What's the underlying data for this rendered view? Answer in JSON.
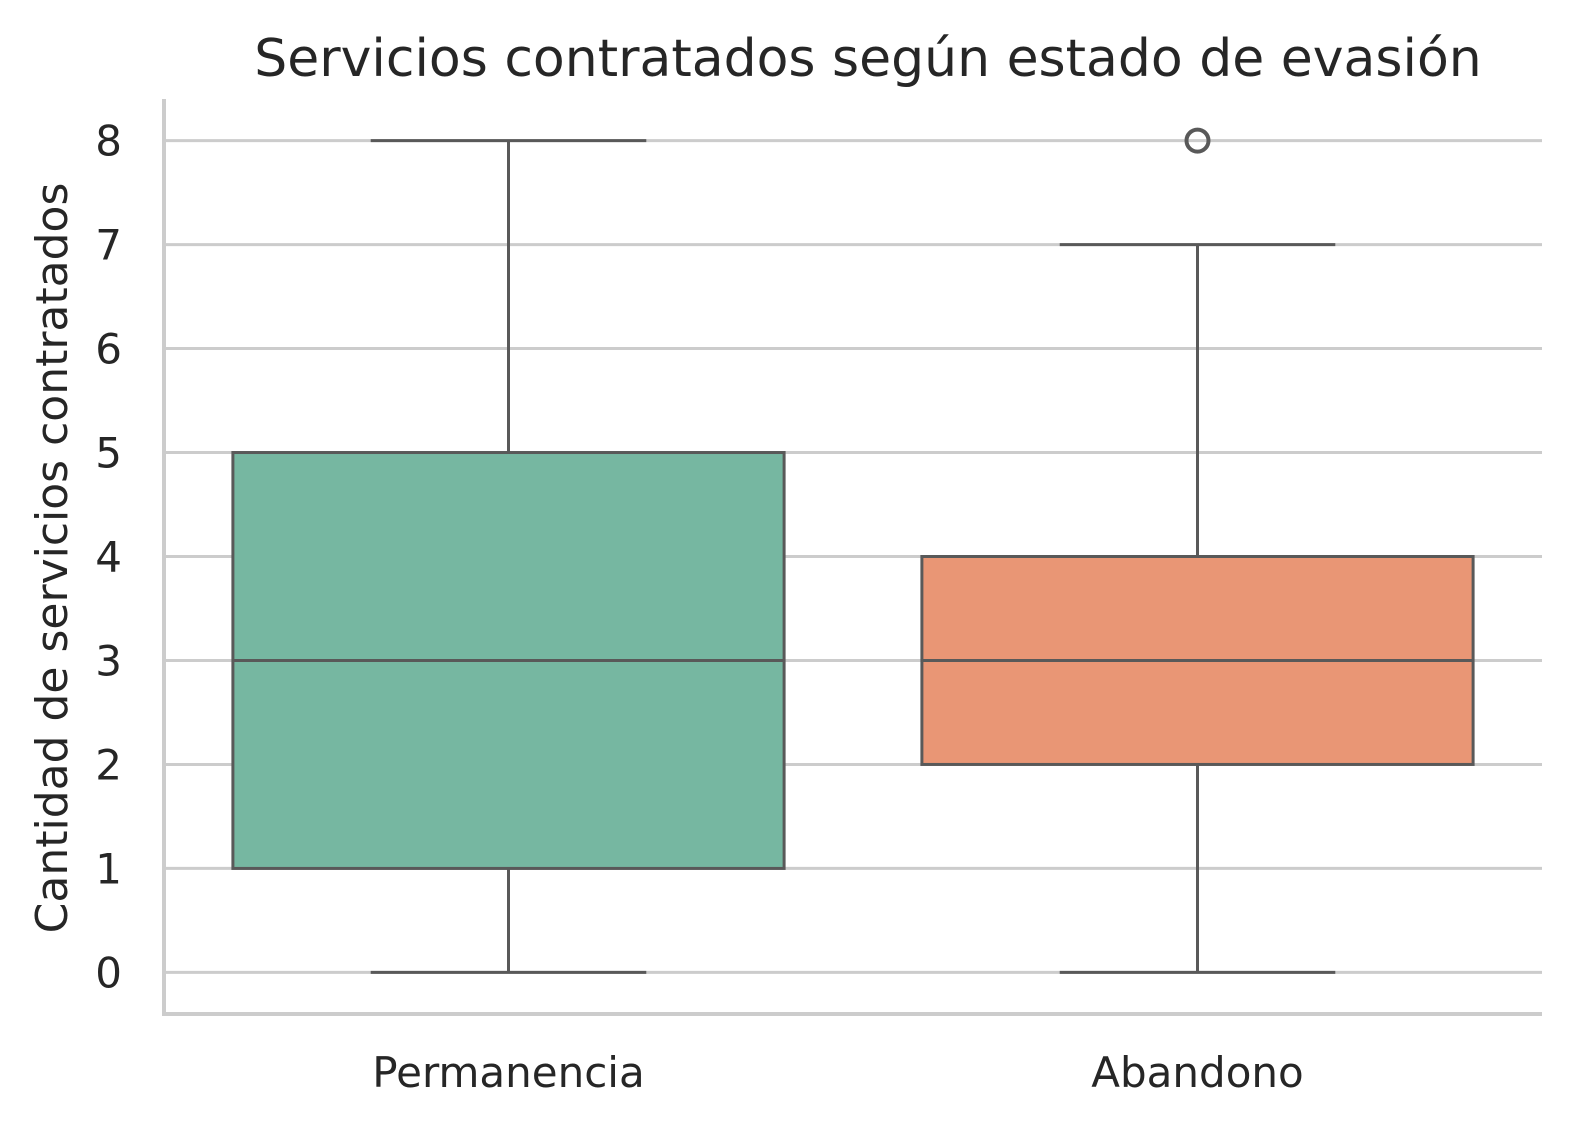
{
  "chart_data": {
    "type": "box",
    "title": "Servicios contratados según estado de evasión",
    "xlabel": "",
    "ylabel": "Cantidad de servicios contratados",
    "ylim": [
      -0.4,
      8.4
    ],
    "yticks": [
      0,
      1,
      2,
      3,
      4,
      5,
      6,
      7,
      8
    ],
    "grid": "horizontal",
    "categories": [
      "Permanencia",
      "Abandono"
    ],
    "boxes": [
      {
        "category": "Permanencia",
        "color": "#76b7a1",
        "whisker_low": 0,
        "q1": 1,
        "median": 3,
        "q3": 5,
        "whisker_high": 8,
        "outliers": []
      },
      {
        "category": "Abandono",
        "color": "#e99675",
        "whisker_low": 0,
        "q1": 2,
        "median": 3,
        "q3": 4,
        "whisker_high": 7,
        "outliers": [
          8
        ]
      }
    ],
    "line_color": "#595959",
    "grid_color": "#cccccc"
  }
}
